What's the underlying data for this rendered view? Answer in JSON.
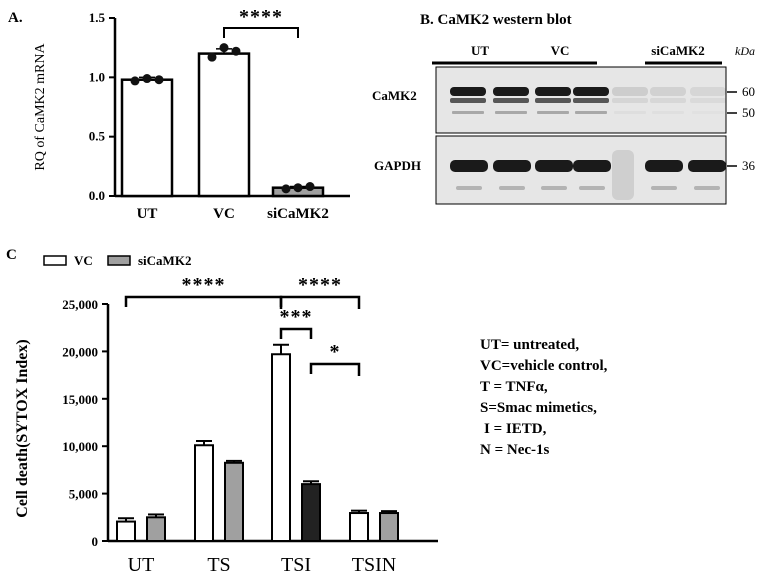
{
  "panels": {
    "a_label": "A.",
    "b_label": "B.",
    "b_title": "CaMK2 western blot",
    "c_label": "C"
  },
  "colors": {
    "white_bar": "#ffffff",
    "gray_bar": "#a0a0a0",
    "dark_bar": "#222222",
    "axis": "#000000",
    "blot_background": "#e6e6e6",
    "blot_band": "#1a1a1a"
  },
  "chart_data": [
    {
      "type": "bar",
      "panel": "A",
      "ylabel": "RQ of CaMK2 mRNA",
      "categories": [
        "UT",
        "VC",
        "siCaMK2"
      ],
      "values": [
        0.98,
        1.2,
        0.07
      ],
      "errors": [
        0.02,
        0.04,
        0.01
      ],
      "bar_colors": [
        "#ffffff",
        "#ffffff",
        "#a0a0a0"
      ],
      "points": [
        [
          0.97,
          0.99,
          0.98
        ],
        [
          1.17,
          1.25,
          1.22
        ],
        [
          0.06,
          0.07,
          0.08
        ]
      ],
      "ylim": [
        0,
        1.5
      ],
      "yticks": [
        "0.0",
        "0.5",
        "1.0",
        "1.5"
      ],
      "significance": [
        {
          "between": [
            "VC",
            "siCaMK2"
          ],
          "label": "****"
        }
      ]
    },
    {
      "type": "bar",
      "panel": "C",
      "ylabel": "Cell death(SYTOX Index)",
      "categories": [
        "UT",
        "TS",
        "TSI",
        "TSIN"
      ],
      "legend": [
        "VC",
        "siCaMK2"
      ],
      "legend_position": "top-left",
      "series": [
        {
          "name": "VC",
          "values": [
            2050,
            10100,
            19700,
            2950
          ],
          "errors": [
            350,
            450,
            1000,
            250
          ]
        },
        {
          "name": "siCaMK2",
          "values": [
            2500,
            8250,
            6000,
            2950
          ],
          "errors": [
            300,
            200,
            300,
            200
          ]
        }
      ],
      "bar_colors": [
        [
          "#ffffff",
          "#a0a0a0"
        ],
        [
          "#ffffff",
          "#a0a0a0"
        ],
        [
          "#ffffff",
          "#222222"
        ],
        [
          "#ffffff",
          "#a0a0a0"
        ]
      ],
      "ylim": [
        0,
        25000
      ],
      "yticks": [
        "0",
        "5,000",
        "10,000",
        "15,000",
        "20,000",
        "25,000"
      ],
      "significance": [
        {
          "between": [
            "UT-VC",
            "TSI-VC"
          ],
          "label": "****"
        },
        {
          "between": [
            "TSI-VC",
            "TSIN-VC"
          ],
          "label": "****"
        },
        {
          "between": [
            "TSI-VC",
            "TSI-siCaMK2"
          ],
          "label": "***"
        },
        {
          "between": [
            "TSI-siCaMK2",
            "TSIN-VC"
          ],
          "label": "*"
        }
      ]
    }
  ],
  "blot": {
    "groups": [
      "UT",
      "VC",
      "siCaMK2"
    ],
    "kda_label": "kDa",
    "rows": [
      {
        "label": "CaMK2",
        "markers": [
          "60",
          "50"
        ]
      },
      {
        "label": "GAPDH",
        "markers": [
          "36"
        ]
      }
    ]
  },
  "abbreviations": [
    "UT= untreated,",
    "VC=vehicle control,",
    "T = TNFα,",
    "S=Smac mimetics,",
    "I = IETD,",
    "N = Nec-1s"
  ]
}
